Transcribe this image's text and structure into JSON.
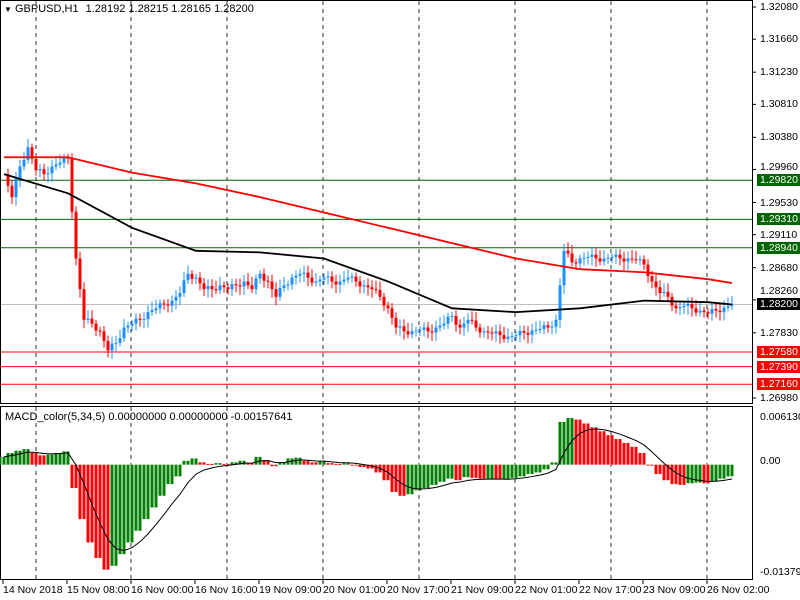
{
  "header": {
    "symbol": "GBPUSD,H1",
    "ohlc": "1.28192 1.28215 1.28165 1.28200"
  },
  "indicator": {
    "label": "MACD_color(5,34,5) 0.00000000 0.00000000 -0.00157641",
    "axis_top": "0.006130",
    "axis_zero": "0.00",
    "axis_bottom": "-0.013798"
  },
  "price_axis": [
    "1.32080",
    "1.31660",
    "1.31230",
    "1.30810",
    "1.30380",
    "1.29960",
    "1.29530",
    "1.29110",
    "1.28680",
    "1.28260",
    "1.27830",
    "1.26980"
  ],
  "levels": [
    {
      "price": "1.29820",
      "color": "#006400"
    },
    {
      "price": "1.29310",
      "color": "#006400"
    },
    {
      "price": "1.28940",
      "color": "#006400"
    },
    {
      "price": "1.27580",
      "color": "#ff0000"
    },
    {
      "price": "1.27390",
      "color": "#ff0000"
    },
    {
      "price": "1.27160",
      "color": "#ff0000"
    }
  ],
  "current_price": "1.28200",
  "time_axis": [
    "14 Nov 2018",
    "15 Nov 08:00",
    "16 Nov 00:00",
    "16 Nov 16:00",
    "19 Nov 09:00",
    "20 Nov 01:00",
    "20 Nov 17:00",
    "21 Nov 09:00",
    "22 Nov 01:00",
    "22 Nov 17:00",
    "23 Nov 09:00",
    "26 Nov 02:00"
  ],
  "colors": {
    "bull": "#1e90ff",
    "bear": "#ff0000",
    "ma_slow": "#ff0000",
    "ma_fast": "#000000",
    "hist_up": "#008000",
    "hist_down": "#ff0000"
  },
  "chart_data": {
    "type": "candlestick",
    "closes": [
      1.299,
      1.296,
      1.3,
      1.3025,
      1.2995,
      1.299,
      1.3,
      1.3005,
      1.301,
      1.288,
      1.28,
      1.2795,
      1.2785,
      1.276,
      1.277,
      1.279,
      1.2795,
      1.28,
      1.281,
      1.2815,
      1.282,
      1.2825,
      1.2835,
      1.286,
      1.2855,
      1.284,
      1.284,
      1.2845,
      1.284,
      1.2845,
      1.285,
      1.284,
      1.286,
      1.285,
      1.283,
      1.2845,
      1.2855,
      1.286,
      1.2855,
      1.285,
      1.2855,
      1.285,
      1.285,
      1.2855,
      1.285,
      1.2845,
      1.284,
      1.283,
      1.2815,
      1.279,
      1.2785,
      1.2785,
      1.2787,
      1.2785,
      1.279,
      1.2795,
      1.2805,
      1.279,
      1.28,
      1.279,
      1.2785,
      1.2782,
      1.278,
      1.2778,
      1.278,
      1.2783,
      1.2786,
      1.2788,
      1.279,
      1.28,
      1.289,
      1.2875,
      1.288,
      1.2882,
      1.288,
      1.288,
      1.2882,
      1.288,
      1.288,
      1.2878,
      1.2872,
      1.285,
      1.2835,
      1.283,
      1.2815,
      1.2818,
      1.2815,
      1.2812,
      1.2808,
      1.2812,
      1.2816,
      1.282
    ],
    "ma_slow": [
      [
        0,
        1.3012
      ],
      [
        8,
        1.3012
      ],
      [
        16,
        1.2992
      ],
      [
        24,
        1.2978
      ],
      [
        32,
        1.296
      ],
      [
        40,
        1.294
      ],
      [
        48,
        1.292
      ],
      [
        56,
        1.29
      ],
      [
        64,
        1.288
      ],
      [
        72,
        1.2866
      ],
      [
        80,
        1.2862
      ],
      [
        88,
        1.2853
      ],
      [
        91,
        1.2848
      ]
    ],
    "ma_fast": [
      [
        0,
        1.299
      ],
      [
        8,
        1.2965
      ],
      [
        16,
        1.292
      ],
      [
        24,
        1.289
      ],
      [
        32,
        1.2888
      ],
      [
        40,
        1.288
      ],
      [
        48,
        1.285
      ],
      [
        56,
        1.2815
      ],
      [
        64,
        1.281
      ],
      [
        72,
        1.2815
      ],
      [
        80,
        1.2825
      ],
      [
        88,
        1.2823
      ],
      [
        91,
        1.282
      ]
    ],
    "macd_hist_e3": [
      1,
      1.5,
      1.8,
      2,
      1.5,
      1.2,
      1.3,
      1.5,
      1.7,
      -3,
      -7,
      -10,
      -12,
      -13.5,
      -13,
      -11.5,
      -10,
      -8.5,
      -7,
      -5.5,
      -4,
      -2.5,
      -1.5,
      0.5,
      0.8,
      0.3,
      0.1,
      0.2,
      0.1,
      0.3,
      0.5,
      0.2,
      1,
      0.6,
      -0.2,
      0.3,
      0.8,
      0.9,
      0.5,
      0.3,
      0.4,
      0.2,
      0.1,
      0.2,
      0,
      -0.3,
      -0.5,
      -1,
      -2,
      -3.5,
      -4,
      -3.8,
      -3.3,
      -3,
      -2.6,
      -2.2,
      -1.8,
      -2,
      -1.6,
      -1.7,
      -1.8,
      -1.8,
      -1.9,
      -1.9,
      -1.7,
      -1.5,
      -1.2,
      -1,
      -0.6,
      0.3,
      5.5,
      6,
      5.8,
      5.3,
      4.8,
      4.3,
      3.8,
      3.3,
      2.8,
      2.3,
      1.5,
      0,
      -1.2,
      -2,
      -2.5,
      -2.6,
      -2.4,
      -2.3,
      -2.4,
      -2.1,
      -1.8,
      -1.5
    ],
    "price_range": [
      1.2698,
      1.3208
    ],
    "macd_range": [
      -0.013798,
      0.00613
    ]
  }
}
